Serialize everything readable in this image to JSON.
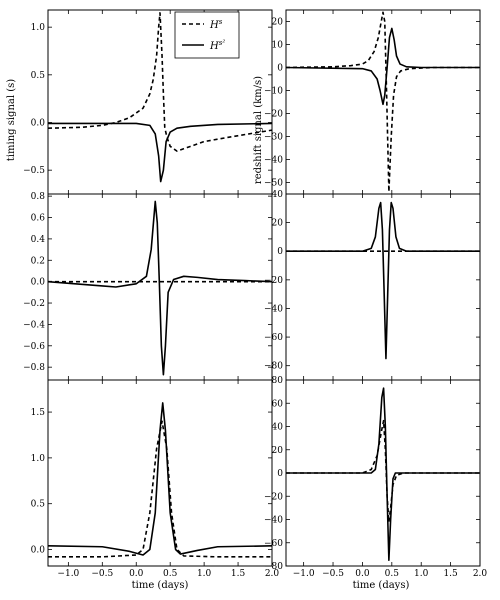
{
  "chart_data": {
    "type": "line",
    "shared": {
      "x_range": [
        -1.3,
        2.0
      ],
      "x_ticks": [
        -1.0,
        -0.5,
        0.0,
        0.5,
        1.0,
        1.5,
        2.0
      ],
      "x_tick_labels": [
        "−1.0",
        "−0.5",
        "0.0",
        "0.5",
        "1.0",
        "1.5",
        "2.0"
      ],
      "xlabel": "time (days)",
      "series": [
        {
          "name": "H^s",
          "style": "dashed",
          "color": "#000000"
        },
        {
          "name": "H^{s^2}",
          "style": "solid",
          "color": "#000000"
        }
      ],
      "legend": {
        "position": "top-right of top-left panel",
        "entries": [
          {
            "base": "H",
            "sup": "s"
          },
          {
            "base": "H",
            "sup": "s²"
          }
        ]
      }
    },
    "panels": [
      {
        "id": "left-top",
        "column": "left",
        "row": 0,
        "ylabel": "timing signal (s)",
        "ylim": [
          -0.75,
          1.18
        ],
        "y_ticks": [
          -0.5,
          0.0,
          0.5,
          1.0
        ],
        "y_tick_labels": [
          "−0.5",
          "0.0",
          "0.5",
          "1.0"
        ],
        "series": [
          {
            "name": "H^s",
            "points": [
              [
                -1.3,
                -0.06
              ],
              [
                -0.8,
                -0.05
              ],
              [
                -0.5,
                -0.03
              ],
              [
                -0.3,
                0.0
              ],
              [
                -0.1,
                0.05
              ],
              [
                0.0,
                0.1
              ],
              [
                0.1,
                0.15
              ],
              [
                0.2,
                0.3
              ],
              [
                0.25,
                0.45
              ],
              [
                0.3,
                0.7
              ],
              [
                0.33,
                1.0
              ],
              [
                0.35,
                1.15
              ],
              [
                0.38,
                0.7
              ],
              [
                0.4,
                0.3
              ],
              [
                0.42,
                -0.05
              ],
              [
                0.45,
                -0.15
              ],
              [
                0.5,
                -0.25
              ],
              [
                0.6,
                -0.3
              ],
              [
                0.8,
                -0.25
              ],
              [
                1.0,
                -0.2
              ],
              [
                1.4,
                -0.15
              ],
              [
                2.0,
                -0.08
              ]
            ]
          },
          {
            "name": "H^{s^2}",
            "points": [
              [
                -1.3,
                -0.01
              ],
              [
                -0.5,
                -0.01
              ],
              [
                0.0,
                -0.01
              ],
              [
                0.2,
                -0.03
              ],
              [
                0.28,
                -0.12
              ],
              [
                0.33,
                -0.35
              ],
              [
                0.36,
                -0.62
              ],
              [
                0.4,
                -0.5
              ],
              [
                0.44,
                -0.2
              ],
              [
                0.5,
                -0.1
              ],
              [
                0.6,
                -0.06
              ],
              [
                0.8,
                -0.04
              ],
              [
                1.2,
                -0.02
              ],
              [
                2.0,
                -0.01
              ]
            ]
          }
        ]
      },
      {
        "id": "right-top",
        "column": "right",
        "row": 0,
        "ylabel": "redshift signal (km/s)",
        "ylim": [
          -55,
          25
        ],
        "y_ticks": [
          -50,
          -40,
          -30,
          -20,
          -10,
          0,
          10,
          20
        ],
        "y_tick_labels": [
          "−50",
          "−40",
          "−30",
          "−20",
          "−10",
          "0",
          "10",
          "20"
        ],
        "series": [
          {
            "name": "H^s",
            "points": [
              [
                -1.3,
                0.0
              ],
              [
                -0.5,
                0.3
              ],
              [
                -0.2,
                0.8
              ],
              [
                0.0,
                1.5
              ],
              [
                0.1,
                3.0
              ],
              [
                0.2,
                7.0
              ],
              [
                0.27,
                13.0
              ],
              [
                0.32,
                20.0
              ],
              [
                0.35,
                24.0
              ],
              [
                0.38,
                20.0
              ],
              [
                0.41,
                -10.0
              ],
              [
                0.45,
                -54.0
              ],
              [
                0.49,
                -30.0
              ],
              [
                0.53,
                -12.0
              ],
              [
                0.58,
                -4.0
              ],
              [
                0.65,
                -1.5
              ],
              [
                0.8,
                -0.5
              ],
              [
                1.2,
                0.0
              ],
              [
                2.0,
                0.0
              ]
            ]
          },
          {
            "name": "H^{s^2}",
            "points": [
              [
                -1.3,
                0.0
              ],
              [
                0.0,
                -0.5
              ],
              [
                0.15,
                -1.5
              ],
              [
                0.25,
                -5.0
              ],
              [
                0.3,
                -10.0
              ],
              [
                0.35,
                -16.0
              ],
              [
                0.38,
                -12.0
              ],
              [
                0.42,
                0.0
              ],
              [
                0.46,
                13.0
              ],
              [
                0.5,
                17.0
              ],
              [
                0.54,
                12.0
              ],
              [
                0.58,
                5.0
              ],
              [
                0.64,
                1.5
              ],
              [
                0.75,
                0.3
              ],
              [
                1.0,
                0.0
              ],
              [
                2.0,
                0.0
              ]
            ]
          }
        ]
      },
      {
        "id": "left-middle",
        "column": "left",
        "row": 1,
        "ylim": [
          -0.92,
          0.82
        ],
        "y_ticks": [
          -0.8,
          -0.6,
          -0.4,
          -0.2,
          0.0,
          0.2,
          0.4,
          0.6,
          0.8
        ],
        "y_tick_labels": [
          "−0.8",
          "−0.6",
          "−0.4",
          "−0.2",
          "0.0",
          "0.2",
          "0.4",
          "0.6",
          "0.8"
        ],
        "series": [
          {
            "name": "H^s",
            "points": [
              [
                -1.3,
                0.0
              ],
              [
                2.0,
                0.0
              ]
            ]
          },
          {
            "name": "H^{s^2}",
            "points": [
              [
                -1.3,
                0.0
              ],
              [
                -0.9,
                -0.02
              ],
              [
                -0.5,
                -0.04
              ],
              [
                -0.3,
                -0.05
              ],
              [
                0.0,
                -0.02
              ],
              [
                0.15,
                0.05
              ],
              [
                0.22,
                0.3
              ],
              [
                0.28,
                0.75
              ],
              [
                0.31,
                0.55
              ],
              [
                0.34,
                0.0
              ],
              [
                0.37,
                -0.6
              ],
              [
                0.4,
                -0.87
              ],
              [
                0.43,
                -0.6
              ],
              [
                0.47,
                -0.1
              ],
              [
                0.55,
                0.02
              ],
              [
                0.7,
                0.05
              ],
              [
                0.9,
                0.04
              ],
              [
                1.2,
                0.02
              ],
              [
                1.6,
                0.01
              ],
              [
                2.0,
                0.0
              ]
            ]
          }
        ]
      },
      {
        "id": "right-middle",
        "column": "right",
        "row": 1,
        "ylim": [
          -90,
          40
        ],
        "y_ticks": [
          -80,
          -60,
          -40,
          -20,
          0,
          20,
          40
        ],
        "y_tick_labels": [
          "−80",
          "−60",
          "−40",
          "−20",
          "0",
          "20",
          "40"
        ],
        "series": [
          {
            "name": "H^s",
            "points": [
              [
                -1.3,
                0.0
              ],
              [
                2.0,
                0.0
              ]
            ]
          },
          {
            "name": "H^{s^2}",
            "points": [
              [
                -1.3,
                0.0
              ],
              [
                0.0,
                0.0
              ],
              [
                0.15,
                2.0
              ],
              [
                0.22,
                10.0
              ],
              [
                0.28,
                30.0
              ],
              [
                0.31,
                34.0
              ],
              [
                0.34,
                15.0
              ],
              [
                0.37,
                -30.0
              ],
              [
                0.4,
                -75.0
              ],
              [
                0.43,
                -30.0
              ],
              [
                0.46,
                15.0
              ],
              [
                0.49,
                34.0
              ],
              [
                0.52,
                30.0
              ],
              [
                0.57,
                10.0
              ],
              [
                0.63,
                2.0
              ],
              [
                0.75,
                0.0
              ],
              [
                2.0,
                0.0
              ]
            ]
          }
        ]
      },
      {
        "id": "left-bottom",
        "column": "left",
        "row": 2,
        "ylim": [
          -0.18,
          1.85
        ],
        "y_ticks": [
          0.0,
          0.5,
          1.0,
          1.5
        ],
        "y_tick_labels": [
          "0.0",
          "0.5",
          "1.0",
          "1.5"
        ],
        "series": [
          {
            "name": "H^s",
            "points": [
              [
                -1.3,
                -0.08
              ],
              [
                -0.5,
                -0.08
              ],
              [
                0.0,
                -0.06
              ],
              [
                0.1,
                0.0
              ],
              [
                0.2,
                0.4
              ],
              [
                0.3,
                1.1
              ],
              [
                0.38,
                1.4
              ],
              [
                0.45,
                1.1
              ],
              [
                0.52,
                0.4
              ],
              [
                0.6,
                0.0
              ],
              [
                0.7,
                -0.07
              ],
              [
                1.2,
                -0.08
              ],
              [
                2.0,
                -0.08
              ]
            ]
          },
          {
            "name": "H^{s^2}",
            "points": [
              [
                -1.3,
                0.04
              ],
              [
                -0.5,
                0.03
              ],
              [
                -0.1,
                -0.02
              ],
              [
                0.1,
                -0.06
              ],
              [
                0.2,
                0.0
              ],
              [
                0.28,
                0.4
              ],
              [
                0.35,
                1.3
              ],
              [
                0.39,
                1.6
              ],
              [
                0.43,
                1.3
              ],
              [
                0.5,
                0.4
              ],
              [
                0.58,
                0.0
              ],
              [
                0.65,
                -0.05
              ],
              [
                0.9,
                -0.01
              ],
              [
                1.2,
                0.03
              ],
              [
                2.0,
                0.04
              ]
            ]
          }
        ]
      },
      {
        "id": "right-bottom",
        "column": "right",
        "row": 2,
        "ylim": [
          -80,
          80
        ],
        "y_ticks": [
          -80,
          -60,
          -40,
          -20,
          0,
          20,
          40,
          60,
          80
        ],
        "y_tick_labels": [
          "−80",
          "−60",
          "−40",
          "−20",
          "0",
          "20",
          "40",
          "60",
          "80"
        ],
        "series": [
          {
            "name": "H^s",
            "points": [
              [
                -1.3,
                0.0
              ],
              [
                0.0,
                0.0
              ],
              [
                0.15,
                3.0
              ],
              [
                0.25,
                15.0
              ],
              [
                0.32,
                35.0
              ],
              [
                0.36,
                45.0
              ],
              [
                0.39,
                20.0
              ],
              [
                0.42,
                -20.0
              ],
              [
                0.45,
                -42.0
              ],
              [
                0.48,
                -30.0
              ],
              [
                0.52,
                -10.0
              ],
              [
                0.58,
                -2.0
              ],
              [
                0.7,
                0.0
              ],
              [
                2.0,
                0.0
              ]
            ]
          },
          {
            "name": "H^{s^2}",
            "points": [
              [
                -1.3,
                0.0
              ],
              [
                0.15,
                0.0
              ],
              [
                0.22,
                3.0
              ],
              [
                0.28,
                25.0
              ],
              [
                0.33,
                65.0
              ],
              [
                0.36,
                73.0
              ],
              [
                0.39,
                40.0
              ],
              [
                0.42,
                -20.0
              ],
              [
                0.45,
                -75.0
              ],
              [
                0.48,
                -40.0
              ],
              [
                0.52,
                -5.0
              ],
              [
                0.56,
                0.0
              ],
              [
                2.0,
                0.0
              ]
            ]
          }
        ]
      }
    ]
  }
}
